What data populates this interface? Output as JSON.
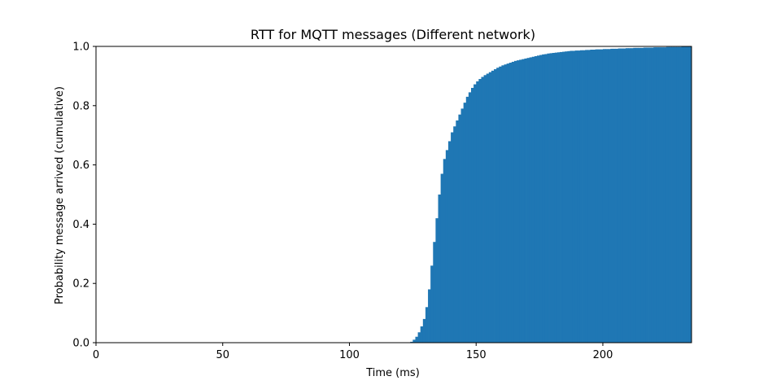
{
  "chart_data": {
    "type": "bar",
    "title": "RTT for MQTT messages (Different network)",
    "xlabel": "Time (ms)",
    "ylabel": "Probability message arrived (cumulative)",
    "xlim": [
      0,
      235
    ],
    "ylim": [
      0,
      1.0
    ],
    "xticks": [
      0,
      50,
      100,
      150,
      200
    ],
    "yticks": [
      0.0,
      0.2,
      0.4,
      0.6,
      0.8,
      1.0
    ],
    "xtick_labels": [
      "0",
      "50",
      "100",
      "150",
      "200"
    ],
    "ytick_labels": [
      "0.0",
      "0.2",
      "0.4",
      "0.6",
      "0.8",
      "1.0"
    ],
    "bin_width": 1,
    "x": [
      124,
      125,
      126,
      127,
      128,
      129,
      130,
      131,
      132,
      133,
      134,
      135,
      136,
      137,
      138,
      139,
      140,
      141,
      142,
      143,
      144,
      145,
      146,
      147,
      148,
      149,
      150,
      151,
      152,
      153,
      154,
      155,
      156,
      157,
      158,
      159,
      160,
      161,
      162,
      163,
      164,
      165,
      166,
      167,
      168,
      169,
      170,
      171,
      172,
      173,
      174,
      175,
      176,
      177,
      178,
      179,
      180,
      181,
      182,
      183,
      184,
      185,
      186,
      187,
      188,
      189,
      190,
      191,
      192,
      193,
      194,
      195,
      196,
      197,
      198,
      199,
      200,
      201,
      202,
      203,
      204,
      205,
      206,
      207,
      208,
      209,
      210,
      211,
      212,
      213,
      214,
      215,
      216,
      217,
      218,
      219,
      220,
      221,
      222,
      223,
      224,
      225,
      226,
      227,
      228,
      229,
      230,
      231,
      232,
      233,
      234
    ],
    "values": [
      0.003,
      0.01,
      0.02,
      0.035,
      0.055,
      0.08,
      0.12,
      0.18,
      0.26,
      0.34,
      0.42,
      0.5,
      0.57,
      0.62,
      0.65,
      0.68,
      0.71,
      0.73,
      0.75,
      0.77,
      0.79,
      0.81,
      0.83,
      0.845,
      0.86,
      0.872,
      0.882,
      0.89,
      0.897,
      0.903,
      0.908,
      0.913,
      0.918,
      0.923,
      0.928,
      0.932,
      0.936,
      0.939,
      0.942,
      0.945,
      0.948,
      0.951,
      0.953,
      0.955,
      0.957,
      0.959,
      0.961,
      0.963,
      0.965,
      0.967,
      0.969,
      0.971,
      0.973,
      0.974,
      0.976,
      0.977,
      0.978,
      0.979,
      0.98,
      0.981,
      0.982,
      0.983,
      0.984,
      0.985,
      0.985,
      0.986,
      0.986,
      0.987,
      0.987,
      0.988,
      0.988,
      0.989,
      0.989,
      0.99,
      0.99,
      0.99,
      0.991,
      0.991,
      0.991,
      0.992,
      0.992,
      0.992,
      0.993,
      0.993,
      0.993,
      0.994,
      0.994,
      0.994,
      0.995,
      0.995,
      0.995,
      0.995,
      0.996,
      0.996,
      0.996,
      0.996,
      0.997,
      0.997,
      0.997,
      0.997,
      0.997,
      0.998,
      0.998,
      0.998,
      0.998,
      0.998,
      0.998,
      0.999,
      0.999,
      0.999,
      0.999
    ],
    "series_color": "#1f77b4",
    "grid": false
  }
}
